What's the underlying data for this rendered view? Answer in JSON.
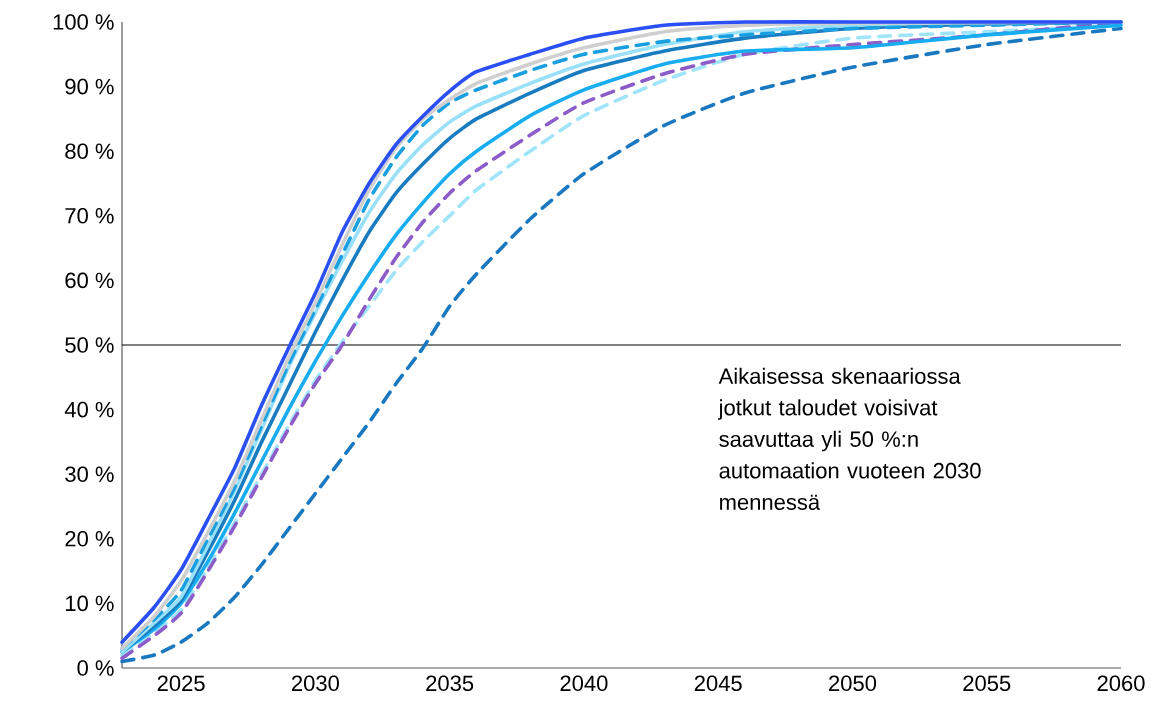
{
  "chart_data": {
    "type": "line",
    "x": [
      2022.8,
      2024,
      2025,
      2026,
      2027,
      2028,
      2029,
      2030,
      2031,
      2032,
      2033,
      2034,
      2035,
      2036,
      2038,
      2040,
      2043,
      2046,
      2050,
      2055,
      2060
    ],
    "series": [
      {
        "color": "#1a78c0",
        "line_style": "dashed",
        "values": [
          1,
          2,
          4,
          7,
          11,
          16,
          21.5,
          27,
          32.5,
          38,
          44,
          49.5,
          56,
          61,
          69.5,
          76.5,
          84,
          89,
          93,
          96.5,
          99
        ]
      },
      {
        "color": "#a0e4fa",
        "line_style": "dashed",
        "values": [
          2,
          5.5,
          9,
          15.5,
          22.5,
          30,
          37.5,
          44.5,
          50.5,
          56,
          61.5,
          66,
          70,
          74,
          80,
          85.5,
          91,
          95,
          97.5,
          98.5,
          99.5
        ]
      },
      {
        "color": "#8c5cc8",
        "line_style": "dashed",
        "values": [
          1.5,
          5,
          8.5,
          15,
          22,
          29.5,
          37,
          44,
          50,
          57,
          63.5,
          69,
          73.5,
          77,
          82.5,
          87.5,
          92,
          95,
          96.5,
          98,
          100
        ]
      },
      {
        "color": "#18acf0",
        "line_style": "solid",
        "values": [
          2.5,
          6,
          10,
          16.5,
          24,
          32,
          40,
          47.5,
          54.5,
          61,
          67,
          72,
          76.5,
          80,
          85.5,
          89.5,
          93.5,
          95.5,
          96,
          98,
          99.5
        ]
      },
      {
        "color": "#1a7cc0",
        "line_style": "solid",
        "values": [
          2.5,
          6.5,
          10.5,
          18,
          26,
          35,
          43.5,
          52,
          60,
          67.5,
          73.5,
          78,
          82,
          85,
          89,
          92.5,
          95.5,
          97.5,
          99,
          99.7,
          100
        ]
      },
      {
        "color": "#99e0f8",
        "line_style": "solid",
        "values": [
          2.5,
          7,
          11,
          19,
          27.5,
          37,
          46.5,
          55,
          63,
          70.5,
          76.5,
          81,
          84.5,
          87,
          90.5,
          93.5,
          96.5,
          98.5,
          99.5,
          100,
          100
        ]
      },
      {
        "color": "#1aa0e0",
        "line_style": "dashed",
        "values": [
          3,
          7.5,
          12,
          20,
          28,
          37.5,
          47,
          55.5,
          64,
          72.5,
          79,
          84,
          87.5,
          89.5,
          92.5,
          95,
          97,
          98,
          99,
          99.5,
          100
        ]
      },
      {
        "color": "#cfcfcf",
        "line_style": "solid",
        "values": [
          3,
          8,
          13.5,
          21,
          29,
          38.5,
          48,
          56.5,
          65.5,
          74,
          80.5,
          85,
          88,
          90.5,
          93.5,
          96,
          98.5,
          99.5,
          99.8,
          null,
          100
        ]
      },
      {
        "color": "#2a4ff5",
        "line_style": "solid",
        "values": [
          4,
          9.4,
          15.2,
          23,
          31,
          40.7,
          49.5,
          58,
          67.5,
          75,
          81,
          85.4,
          89.3,
          92.3,
          95,
          97.5,
          99.5,
          100,
          100,
          100,
          100
        ]
      }
    ],
    "xlim": [
      2022.8,
      2060
    ],
    "xticks": [
      2025,
      2030,
      2035,
      2040,
      2045,
      2050,
      2055,
      2060
    ],
    "ylim": [
      0,
      100
    ],
    "yticks": [
      {
        "value": 0,
        "label": "0 %"
      },
      {
        "value": 10,
        "label": "10 %"
      },
      {
        "value": 20,
        "label": "20 %"
      },
      {
        "value": 30,
        "label": "30 %"
      },
      {
        "value": 40,
        "label": "40 %"
      },
      {
        "value": 50,
        "label": "50 %"
      },
      {
        "value": 60,
        "label": "60 %"
      },
      {
        "value": 70,
        "label": "70 %"
      },
      {
        "value": 80,
        "label": "80 %"
      },
      {
        "value": 90,
        "label": "90 %"
      },
      {
        "value": 100,
        "label": "100 %"
      }
    ],
    "ref_lines": [
      {
        "axis": "y",
        "value": 50,
        "color": "#000000"
      }
    ],
    "annotations": [
      "Aikaisessa skenaariossa jotkut taloudet voisivat saavuttaa yli 50 %:n automaation vuoteen 2030 mennessä"
    ],
    "grid": false
  }
}
